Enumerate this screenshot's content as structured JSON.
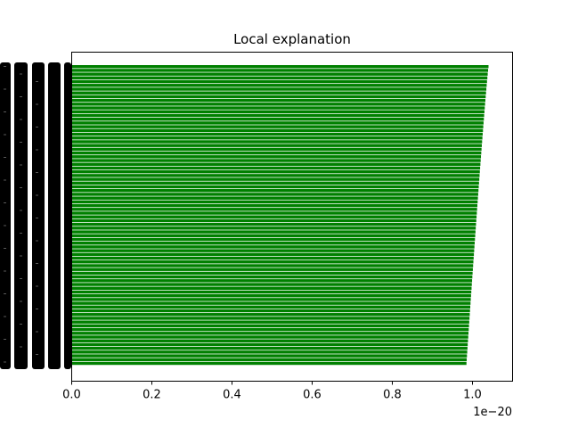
{
  "chart_data": {
    "type": "bar",
    "orientation": "horizontal",
    "title": "Local explanation",
    "xlabel": "",
    "ylabel": "",
    "x_offset_text": "1e−20",
    "xlim": [
      0,
      1.1
    ],
    "x_ticks": [
      0.0,
      0.2,
      0.4,
      0.6,
      0.8,
      1.0
    ],
    "x_tick_labels": [
      "0.0",
      "0.2",
      "0.4",
      "0.6",
      "0.8",
      "1.0"
    ],
    "bar_color": "#008000",
    "bar_count": 80,
    "value_max": 1.04,
    "value_min": 0.985,
    "grid": false,
    "legend": "none"
  }
}
